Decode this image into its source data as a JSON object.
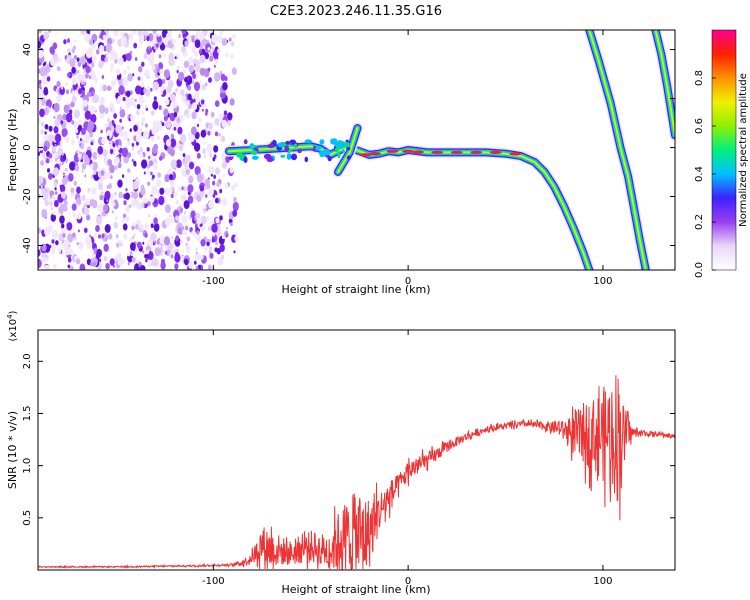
{
  "title": "C2E3.2023.246.11.35.G16",
  "colors": {
    "snr_line": "#ee3333",
    "track_core": "#e8203a",
    "colorbar_stops": [
      "#ffffff",
      "#e8d8f8",
      "#9a3ff0",
      "#3b22ff",
      "#00c0ff",
      "#00f080",
      "#90f000",
      "#f0f000",
      "#ff9000",
      "#ff2000",
      "#ff0090"
    ]
  },
  "chart_data": [
    {
      "type": "heatmap",
      "name": "spectrogram",
      "xlabel": "Height of straight line (km)",
      "ylabel": "Frequency (Hz)",
      "xlim": [
        -190,
        137
      ],
      "ylim": [
        -50,
        48
      ],
      "x_ticks": [
        -100,
        0,
        100
      ],
      "x_tick_labels": [
        "-100",
        "0",
        "100"
      ],
      "y_ticks": [
        40,
        20,
        0,
        -20,
        -40
      ],
      "y_tick_labels": [
        "40",
        "20",
        "0",
        "-20",
        "-40"
      ],
      "noise_region_x": [
        -190,
        -88
      ],
      "tracks": [
        {
          "label": "main",
          "points": [
            [
              -92,
              -1.5
            ],
            [
              -80,
              -1
            ],
            [
              -70,
              -0.5
            ],
            [
              -60,
              0
            ],
            [
              -50,
              0.5
            ],
            [
              -45,
              -0.5
            ],
            [
              -40,
              -3
            ],
            [
              -35,
              -1
            ],
            [
              -30,
              0
            ],
            [
              -25,
              -1.5
            ],
            [
              -20,
              -3
            ],
            [
              -15,
              -2.5
            ],
            [
              -10,
              -1.5
            ],
            [
              -5,
              -2
            ],
            [
              0,
              -1
            ],
            [
              10,
              -2
            ],
            [
              20,
              -2
            ],
            [
              30,
              -2
            ],
            [
              40,
              -2
            ],
            [
              50,
              -2.5
            ],
            [
              58,
              -3.5
            ],
            [
              65,
              -6
            ],
            [
              70,
              -10
            ],
            [
              75,
              -16
            ],
            [
              80,
              -24
            ],
            [
              85,
              -33
            ],
            [
              90,
              -43
            ],
            [
              93,
              -50
            ]
          ]
        },
        {
          "label": "branch-1",
          "points": [
            [
              -36,
              -10
            ],
            [
              -30,
              -2
            ],
            [
              -26,
              8
            ]
          ]
        },
        {
          "label": "steep-1",
          "points": [
            [
              93,
              48
            ],
            [
              98,
              35
            ],
            [
              104,
              18
            ],
            [
              109,
              0
            ],
            [
              113,
              -12
            ],
            [
              116,
              -25
            ],
            [
              119,
              -38
            ],
            [
              122,
              -50
            ]
          ]
        },
        {
          "label": "steep-2",
          "points": [
            [
              127,
              48
            ],
            [
              130,
              38
            ],
            [
              133,
              25
            ],
            [
              136,
              10
            ],
            [
              137,
              5
            ]
          ]
        }
      ],
      "colorbar": {
        "label": "Normalized spectral amplitude",
        "range": [
          0,
          1
        ],
        "ticks": [
          0.0,
          0.2,
          0.4,
          0.6,
          0.8
        ],
        "tick_labels": [
          "0.0",
          "0.2",
          "0.4",
          "0.6",
          "0.8"
        ]
      }
    },
    {
      "type": "line",
      "name": "snr",
      "xlabel": "Height of straight line (km)",
      "ylabel": "SNR (10 * v/v)",
      "y_multiplier_label": "(x10",
      "y_multiplier_exp": "4",
      "y_multiplier_close": ")",
      "xlim": [
        -190,
        137
      ],
      "ylim": [
        0,
        2.3
      ],
      "x_ticks": [
        -100,
        0,
        100
      ],
      "x_tick_labels": [
        "-100",
        "0",
        "100"
      ],
      "y_ticks": [
        0.5,
        1.0,
        1.5,
        2.0
      ],
      "y_tick_labels": [
        "0.5",
        "1.0",
        "1.5",
        "2.0"
      ],
      "series": [
        {
          "envelope": {
            "x": [
              -190,
              -150,
              -110,
              -90,
              -85,
              -80,
              -75,
              -70,
              -65,
              -60,
              -55,
              -50,
              -45,
              -40,
              -35,
              -30,
              -25,
              -20,
              -15,
              -10,
              -5,
              0,
              10,
              20,
              30,
              40,
              50,
              60,
              70,
              80,
              85,
              90,
              95,
              100,
              105,
              108,
              110,
              115,
              120,
              130,
              137
            ],
            "mid": [
              0.03,
              0.03,
              0.04,
              0.05,
              0.07,
              0.12,
              0.25,
              0.2,
              0.18,
              0.16,
              0.2,
              0.22,
              0.2,
              0.18,
              0.3,
              0.32,
              0.3,
              0.35,
              0.55,
              0.7,
              0.8,
              0.95,
              1.05,
              1.18,
              1.28,
              1.35,
              1.38,
              1.4,
              1.38,
              1.35,
              1.3,
              1.3,
              1.3,
              1.3,
              1.32,
              1.3,
              1.33,
              1.32,
              1.31,
              1.3,
              1.28
            ],
            "amp": [
              0.005,
              0.005,
              0.008,
              0.01,
              0.03,
              0.06,
              0.18,
              0.2,
              0.14,
              0.12,
              0.14,
              0.16,
              0.15,
              0.2,
              0.3,
              0.4,
              0.45,
              0.35,
              0.2,
              0.15,
              0.12,
              0.1,
              0.08,
              0.05,
              0.04,
              0.03,
              0.03,
              0.03,
              0.04,
              0.08,
              0.2,
              0.3,
              0.35,
              0.45,
              0.55,
              0.7,
              0.3,
              0.05,
              0.03,
              0.02,
              0.02
            ]
          }
        }
      ]
    }
  ]
}
